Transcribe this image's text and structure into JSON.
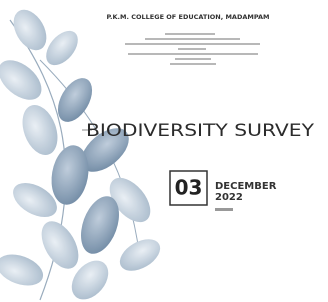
{
  "header": {
    "title": "P.K.M. COLLEGE OF EDUCATION, MADAMPAM"
  },
  "cover": {
    "title": "BIODIVERSITY SURVEY",
    "day": "03",
    "month": "DECEMBER",
    "year": "2022"
  }
}
